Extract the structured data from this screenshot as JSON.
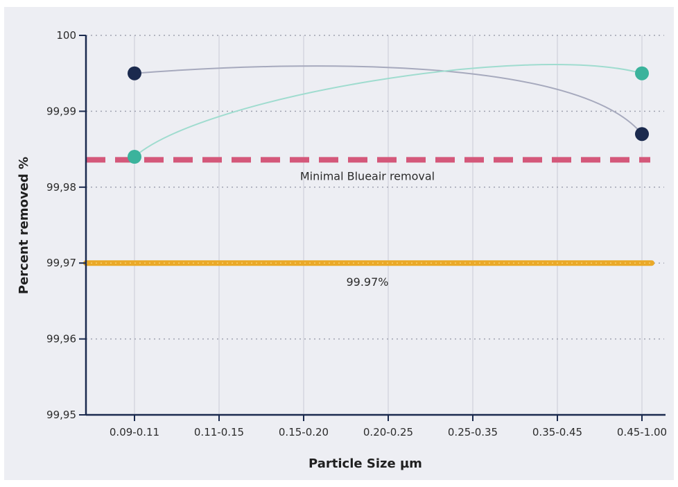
{
  "chart_data": {
    "type": "line",
    "title": "",
    "xlabel": "Particle Size µm",
    "ylabel": "Percent removed %",
    "categories": [
      "0.09-0.11",
      "0.11-0.15",
      "0.15-0.20",
      "0.20-0.25",
      "0.25-0.35",
      "0.35-0.45",
      "0.45-1.00"
    ],
    "ylim": [
      99.95,
      100
    ],
    "yticks": [
      {
        "value": 99.95,
        "label": "99,95"
      },
      {
        "value": 99.96,
        "label": "99,96"
      },
      {
        "value": 99.97,
        "label": "99,97"
      },
      {
        "value": 99.98,
        "label": "99,98"
      },
      {
        "value": 99.99,
        "label": "99,99"
      },
      {
        "value": 100,
        "label": "100"
      }
    ],
    "grid": true,
    "series": [
      {
        "color": "#1b2a4e",
        "line_color": "#a6a9bd",
        "points": [
          {
            "category": "0.09-0.11",
            "y": 99.995
          },
          {
            "category": "0.45-1.00",
            "y": 99.987
          }
        ]
      },
      {
        "color": "#3bb39c",
        "line_color": "#9fdccf",
        "points": [
          {
            "category": "0.09-0.11",
            "y": 99.984
          },
          {
            "category": "0.45-1.00",
            "y": 99.995
          }
        ]
      }
    ],
    "reference_lines": [
      {
        "y": 99.9836,
        "label": "Minimal Blueair removal",
        "color": "#d4587a",
        "style": "dashed"
      },
      {
        "y": 99.97,
        "label": "99.97%",
        "color": "#eaa928",
        "style": "solid"
      }
    ]
  }
}
